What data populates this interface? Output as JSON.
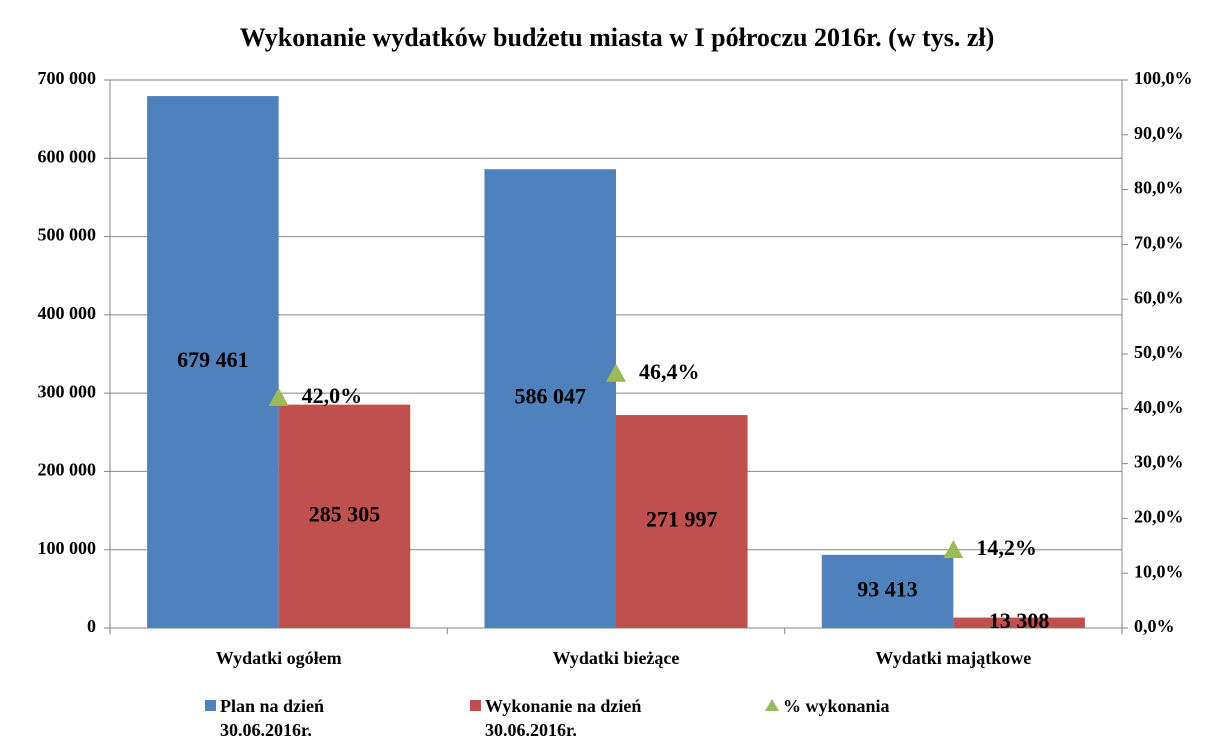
{
  "chart_data": {
    "type": "bar",
    "title": "Wykonanie wydatków budżetu miasta w I półroczu 2016r. (w tys. zł)",
    "categories": [
      "Wydatki ogółem",
      "Wydatki bieżące",
      "Wydatki majątkowe"
    ],
    "series": [
      {
        "name": "Plan na dzień 30.06.2016r.",
        "color": "#4f81bd",
        "values": [
          679461,
          586047,
          93413
        ],
        "value_labels": [
          "679 461",
          "586 047",
          "93 413"
        ]
      },
      {
        "name": "Wykonanie na dzień 30.06.2016r.",
        "color": "#c0504d",
        "values": [
          285305,
          271997,
          13308
        ],
        "value_labels": [
          "285 305",
          "271 997",
          "13 308"
        ]
      },
      {
        "name": "% wykonania",
        "color": "#9bbb59",
        "axis": "y2",
        "marker": "triangle",
        "values": [
          42.0,
          46.4,
          14.2
        ],
        "value_labels": [
          "42,0%",
          "46,4%",
          "14,2%"
        ]
      }
    ],
    "ylim": [
      0,
      700000
    ],
    "yticks": [
      0,
      {
        "value": 100000,
        "label": "100 000"
      },
      {
        "value": 200000,
        "label": "200 000"
      },
      {
        "value": 300000,
        "label": "300 000"
      },
      {
        "value": 400000,
        "label": "400 000"
      },
      {
        "value": 500000,
        "label": "500 000"
      },
      {
        "value": 600000,
        "label": "600 000"
      },
      {
        "value": 700000,
        "label": "700 000"
      }
    ],
    "y2lim": [
      0,
      100
    ],
    "y2ticks": [
      {
        "value": 0,
        "label": "0,0%"
      },
      {
        "value": 10,
        "label": "10,0%"
      },
      {
        "value": 20,
        "label": "20,0%"
      },
      {
        "value": 30,
        "label": "30,0%"
      },
      {
        "value": 40,
        "label": "40,0%"
      },
      {
        "value": 50,
        "label": "50,0%"
      },
      {
        "value": 60,
        "label": "60,0%"
      },
      {
        "value": 70,
        "label": "70,0%"
      },
      {
        "value": 80,
        "label": "80,0%"
      },
      {
        "value": 90,
        "label": "90,0%"
      },
      {
        "value": 100,
        "label": "100,0%"
      }
    ],
    "grid": true,
    "legend": "bottom"
  }
}
